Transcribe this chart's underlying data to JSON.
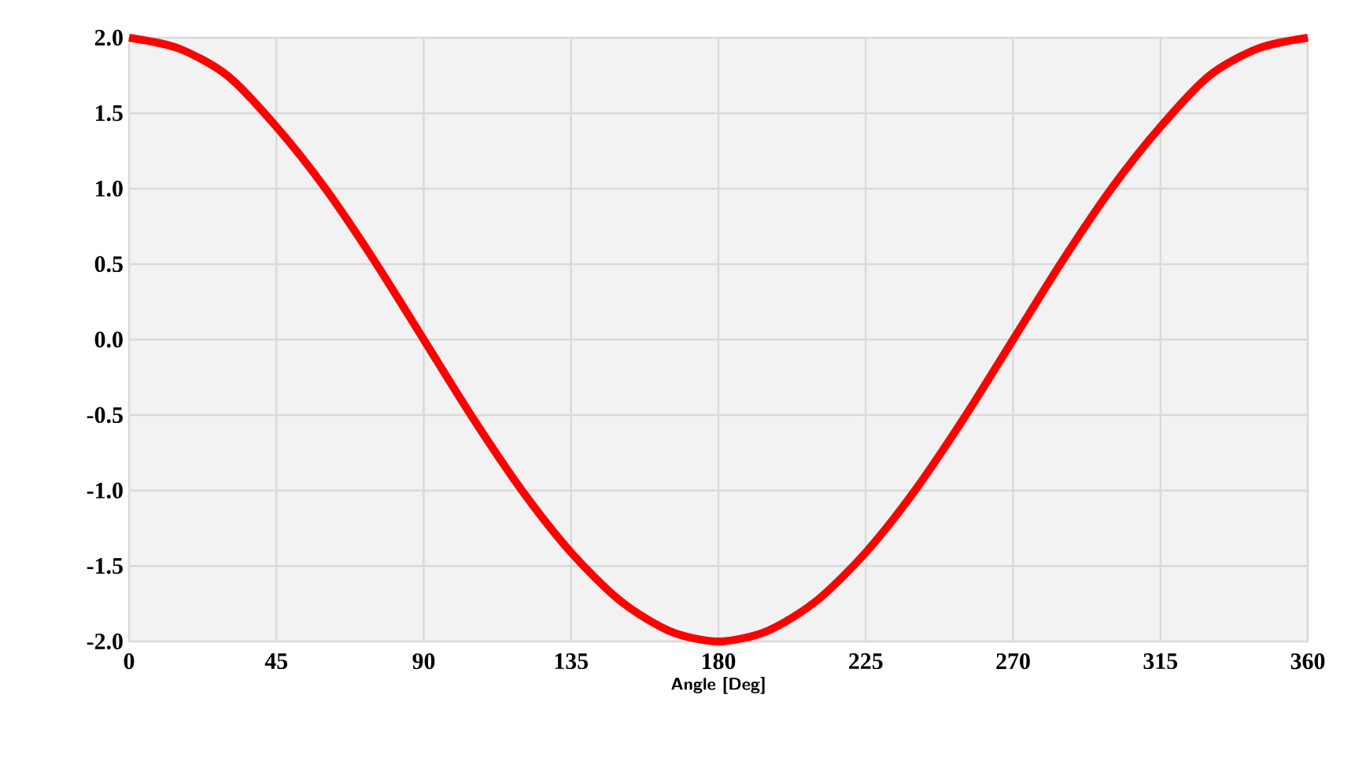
{
  "chart_data": {
    "type": "line",
    "xlabel": "Angle [Deg]",
    "x": [
      0,
      15,
      30,
      45,
      60,
      75,
      90,
      105,
      120,
      135,
      150,
      165,
      180,
      195,
      210,
      225,
      240,
      255,
      270,
      285,
      300,
      315,
      330,
      345,
      360
    ],
    "series": [
      {
        "color": "#ff0000",
        "values": [
          2.0,
          1.93,
          1.75,
          1.41,
          1.0,
          0.52,
          0.0,
          -0.52,
          -1.0,
          -1.41,
          -1.73,
          -1.93,
          -2.0,
          -1.93,
          -1.73,
          -1.41,
          -1.0,
          -0.52,
          0.0,
          0.52,
          1.0,
          1.41,
          1.75,
          1.93,
          2.0
        ]
      }
    ],
    "xlim": [
      0,
      360
    ],
    "xticks": [
      0,
      45,
      90,
      135,
      180,
      225,
      270,
      315,
      360
    ],
    "ylim": [
      -2.0,
      2.0
    ],
    "yticks": [
      {
        "value": -2.0,
        "label": "-2.0"
      },
      {
        "value": -1.5,
        "label": "-1.5"
      },
      {
        "value": -1.0,
        "label": "-1.0"
      },
      {
        "value": -0.5,
        "label": "-0.5"
      },
      {
        "value": 0.0,
        "label": "0.0"
      },
      {
        "value": 0.5,
        "label": "0.5"
      },
      {
        "value": 1.0,
        "label": "1.0"
      },
      {
        "value": 1.5,
        "label": "1.5"
      },
      {
        "value": 2.0,
        "label": "2.0"
      }
    ],
    "grid": true,
    "marker": "none",
    "line_style": "solid"
  }
}
